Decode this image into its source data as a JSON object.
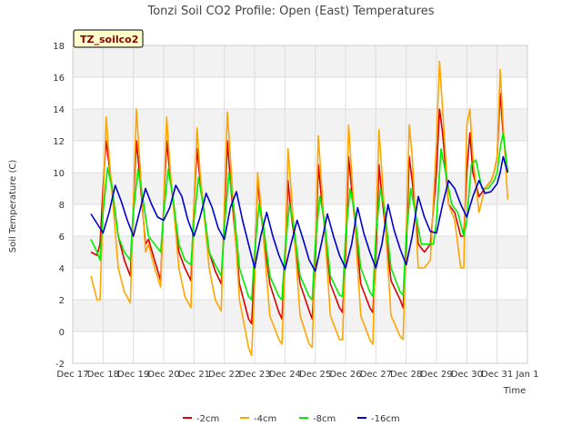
{
  "chart_data": {
    "type": "line",
    "title": "Tonzi Soil CO2 Profile: Open (East) Temperatures",
    "site_label": "TZ_soilco2",
    "xlabel": "Time",
    "ylabel": "Soil Temperature (C)",
    "xlim": [
      17,
      32
    ],
    "ylim": [
      -2,
      18
    ],
    "yticks": [
      -2,
      0,
      2,
      4,
      6,
      8,
      10,
      12,
      14,
      16,
      18
    ],
    "xticks": [
      {
        "value": 17,
        "label": "Dec 17"
      },
      {
        "value": 18,
        "label": "Dec 18"
      },
      {
        "value": 19,
        "label": "Dec 19"
      },
      {
        "value": 20,
        "label": "Dec 20"
      },
      {
        "value": 21,
        "label": "Dec 21"
      },
      {
        "value": 22,
        "label": "Dec 22"
      },
      {
        "value": 23,
        "label": "Dec 23"
      },
      {
        "value": 24,
        "label": "Dec 24"
      },
      {
        "value": 25,
        "label": "Dec 25"
      },
      {
        "value": 26,
        "label": "Dec 26"
      },
      {
        "value": 27,
        "label": "Dec 27"
      },
      {
        "value": 28,
        "label": "Dec 28"
      },
      {
        "value": 29,
        "label": "Dec 29"
      },
      {
        "value": 30,
        "label": "Dec 30"
      },
      {
        "value": 31,
        "label": "Dec 31"
      },
      {
        "value": 32,
        "label": "Jan 1"
      }
    ],
    "grid": true,
    "legend_position": "bottom",
    "series": [
      {
        "name": "-2cm",
        "color": "#dd0000",
        "x": [
          17.6,
          17.8,
          17.9,
          18,
          18.1,
          18.2,
          18.5,
          18.7,
          18.9,
          19,
          19.1,
          19.2,
          19.4,
          19.5,
          19.7,
          19.9,
          20,
          20.1,
          20.2,
          20.5,
          20.7,
          20.9,
          21,
          21.1,
          21.2,
          21.5,
          21.7,
          21.9,
          22,
          22.1,
          22.2,
          22.5,
          22.8,
          22.9,
          23,
          23.1,
          23.2,
          23.5,
          23.8,
          23.9,
          24,
          24.1,
          24.2,
          24.5,
          24.8,
          24.9,
          25,
          25.1,
          25.2,
          25.5,
          25.8,
          25.9,
          26,
          26.1,
          26.2,
          26.5,
          26.8,
          26.9,
          27,
          27.1,
          27.2,
          27.5,
          27.8,
          27.9,
          28,
          28.1,
          28.2,
          28.4,
          28.6,
          28.8,
          29,
          29.1,
          29.2,
          29.4,
          29.6,
          29.8,
          29.9,
          30,
          30.1,
          30.2,
          30.4,
          30.6,
          30.8,
          30.9,
          31,
          31.1,
          31.2,
          31.35
        ],
        "values": [
          5,
          4.8,
          5.5,
          9,
          12,
          10.5,
          6,
          4.5,
          3.5,
          8,
          12,
          10,
          5.5,
          5.8,
          4.5,
          3.2,
          8,
          12,
          10,
          5,
          4,
          3.2,
          8,
          11.5,
          9.5,
          5,
          3.8,
          3,
          7,
          12,
          9.5,
          3,
          0.8,
          0.5,
          4,
          9.5,
          7.5,
          3,
          1.2,
          0.8,
          4,
          9.5,
          7.5,
          3,
          1.3,
          0.8,
          4,
          10.5,
          8.5,
          3,
          1.5,
          1.2,
          4.5,
          11,
          9,
          3,
          1.5,
          1.2,
          4.5,
          10.5,
          8.5,
          3.2,
          2,
          1.5,
          5,
          11,
          9.5,
          5.5,
          5,
          5.5,
          10,
          14,
          12.5,
          8,
          7.5,
          6,
          6,
          10,
          12.5,
          10,
          8.5,
          9,
          9.5,
          10,
          11,
          15,
          12.5,
          10
        ]
      },
      {
        "name": "-4cm",
        "color": "#ffa500",
        "x": [
          17.6,
          17.8,
          17.9,
          18,
          18.1,
          18.2,
          18.5,
          18.7,
          18.9,
          19,
          19.1,
          19.2,
          19.4,
          19.5,
          19.7,
          19.9,
          20,
          20.1,
          20.2,
          20.5,
          20.7,
          20.9,
          21,
          21.1,
          21.2,
          21.5,
          21.7,
          21.9,
          22,
          22.1,
          22.2,
          22.5,
          22.8,
          22.9,
          23,
          23.1,
          23.2,
          23.5,
          23.8,
          23.9,
          24,
          24.1,
          24.2,
          24.5,
          24.8,
          24.9,
          25,
          25.1,
          25.2,
          25.5,
          25.8,
          25.9,
          26,
          26.1,
          26.2,
          26.5,
          26.8,
          26.9,
          27,
          27.1,
          27.2,
          27.5,
          27.8,
          27.9,
          28,
          28.1,
          28.2,
          28.4,
          28.6,
          28.8,
          29,
          29.1,
          29.2,
          29.4,
          29.6,
          29.8,
          29.9,
          30,
          30.1,
          30.2,
          30.4,
          30.6,
          30.8,
          30.9,
          31,
          31.1,
          31.2,
          31.35
        ],
        "values": [
          3.5,
          2,
          2,
          8,
          13.5,
          11,
          4,
          2.5,
          1.8,
          8,
          14,
          11,
          5,
          5.5,
          4,
          2.8,
          8,
          13.5,
          10.5,
          4,
          2.2,
          1.5,
          8,
          12.8,
          10,
          4,
          2,
          1.3,
          8,
          13.8,
          11,
          2,
          -1,
          -1.5,
          3,
          10,
          8,
          1,
          -0.5,
          -0.8,
          4,
          11.5,
          9,
          1,
          -0.8,
          -1,
          5,
          12.3,
          9.5,
          1,
          -0.5,
          -0.5,
          5.5,
          13,
          10,
          1,
          -0.5,
          -0.8,
          6,
          12.7,
          10,
          1,
          -0.3,
          -0.5,
          6,
          13,
          11,
          4,
          4,
          4.5,
          12,
          17,
          14,
          8,
          7,
          4,
          4,
          13,
          14,
          11,
          7.5,
          9,
          9.5,
          10,
          11,
          16.5,
          13,
          8.3
        ]
      },
      {
        "name": "-8cm",
        "color": "#00ee00",
        "x": [
          17.6,
          17.8,
          17.9,
          18,
          18.15,
          18.3,
          18.5,
          18.7,
          18.9,
          19,
          19.15,
          19.3,
          19.5,
          19.7,
          19.9,
          20,
          20.15,
          20.3,
          20.5,
          20.7,
          20.9,
          21,
          21.15,
          21.3,
          21.5,
          21.7,
          21.9,
          22,
          22.15,
          22.3,
          22.5,
          22.8,
          22.9,
          23,
          23.15,
          23.3,
          23.5,
          23.8,
          23.9,
          24,
          24.15,
          24.3,
          24.5,
          24.8,
          24.9,
          25,
          25.15,
          25.3,
          25.5,
          25.8,
          25.9,
          26,
          26.15,
          26.3,
          26.5,
          26.8,
          26.9,
          27,
          27.15,
          27.3,
          27.5,
          27.8,
          27.9,
          28,
          28.15,
          28.3,
          28.5,
          28.7,
          28.9,
          29,
          29.15,
          29.3,
          29.5,
          29.7,
          29.9,
          30,
          30.15,
          30.3,
          30.5,
          30.7,
          30.9,
          31,
          31.1,
          31.2,
          31.35
        ],
        "values": [
          5.8,
          5,
          4.5,
          7.5,
          10.3,
          9,
          6,
          5,
          4.5,
          7.5,
          10.2,
          8.5,
          6,
          5.5,
          5,
          7.5,
          10.2,
          8.5,
          5.5,
          4.5,
          4.2,
          7,
          9.7,
          8,
          5,
          4.2,
          3.5,
          6.5,
          10,
          8,
          4,
          2.2,
          2,
          5,
          8,
          6.5,
          3.5,
          2.2,
          2,
          5,
          8,
          6.5,
          3.5,
          2.2,
          2,
          5.5,
          8.5,
          7,
          3.5,
          2.3,
          2.2,
          6,
          9,
          7.5,
          4,
          2.5,
          2.2,
          6,
          9,
          7.5,
          4,
          2.5,
          2.3,
          6,
          9,
          7.5,
          5.5,
          5.5,
          5.5,
          7,
          11.5,
          10,
          8,
          7.5,
          6,
          7,
          10.5,
          10.8,
          9,
          9,
          9.5,
          10,
          11.5,
          12.5,
          10
        ]
      },
      {
        "name": "-16cm",
        "color": "#0000cc",
        "x": [
          17.6,
          17.8,
          18,
          18.2,
          18.4,
          18.6,
          18.8,
          19,
          19.2,
          19.4,
          19.6,
          19.8,
          20,
          20.2,
          20.4,
          20.6,
          20.8,
          21,
          21.2,
          21.4,
          21.6,
          21.8,
          22,
          22.2,
          22.4,
          22.6,
          22.8,
          23,
          23.2,
          23.4,
          23.6,
          23.8,
          24,
          24.2,
          24.4,
          24.6,
          24.8,
          25,
          25.2,
          25.4,
          25.6,
          25.8,
          26,
          26.2,
          26.4,
          26.6,
          26.8,
          27,
          27.2,
          27.4,
          27.6,
          27.8,
          28,
          28.2,
          28.4,
          28.6,
          28.8,
          29,
          29.2,
          29.4,
          29.6,
          29.8,
          30,
          30.2,
          30.4,
          30.6,
          30.8,
          31,
          31.1,
          31.2,
          31.35
        ],
        "values": [
          7.4,
          6.8,
          6.2,
          7.5,
          9.2,
          8.2,
          7,
          6,
          7.5,
          9,
          8,
          7.2,
          7,
          7.8,
          9.2,
          8.5,
          7,
          6,
          7.2,
          8.7,
          7.8,
          6.5,
          5.8,
          7.8,
          8.8,
          7,
          5.5,
          4,
          6,
          7.5,
          6,
          4.8,
          3.9,
          5.5,
          7,
          5.8,
          4.5,
          3.8,
          5.5,
          7.4,
          6,
          4.8,
          4,
          5.5,
          7.8,
          6.2,
          5,
          4,
          5.5,
          8,
          6.4,
          5.2,
          4.2,
          6,
          8.5,
          7.2,
          6.3,
          6.2,
          8,
          9.5,
          9,
          8,
          7.2,
          8.5,
          9.5,
          8.7,
          8.8,
          9.3,
          10,
          11,
          10
        ]
      }
    ]
  }
}
